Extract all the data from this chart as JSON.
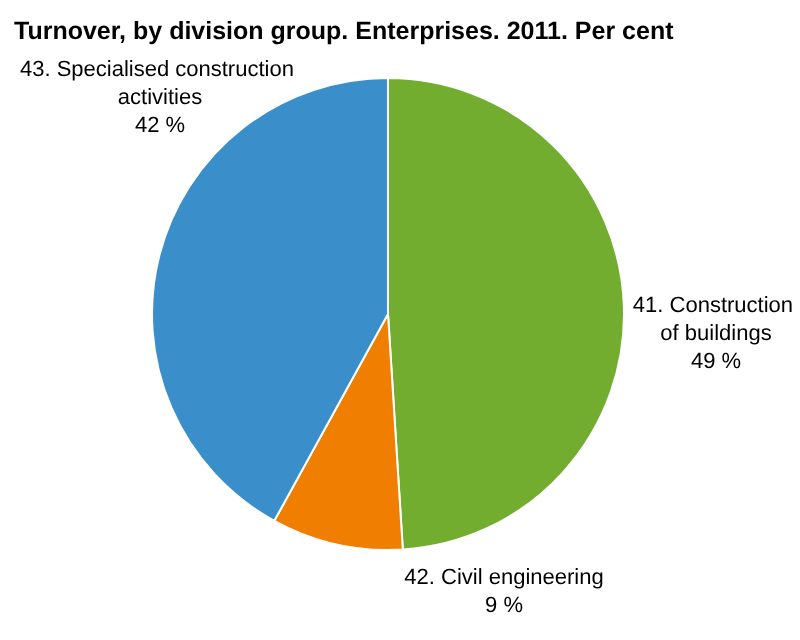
{
  "chart_data": {
    "type": "pie",
    "title": "Turnover, by division group. Enterprises. 2011. Per cent",
    "categories": [
      "41. Construction of buildings",
      "42. Civil engineering",
      "43. Specialised construction activities"
    ],
    "values": [
      49,
      9,
      42
    ],
    "colors": [
      "#72ad2f",
      "#f07e00",
      "#3a8fca"
    ],
    "value_labels": [
      "49 %",
      "9 %",
      "42 %"
    ],
    "legend": false
  }
}
